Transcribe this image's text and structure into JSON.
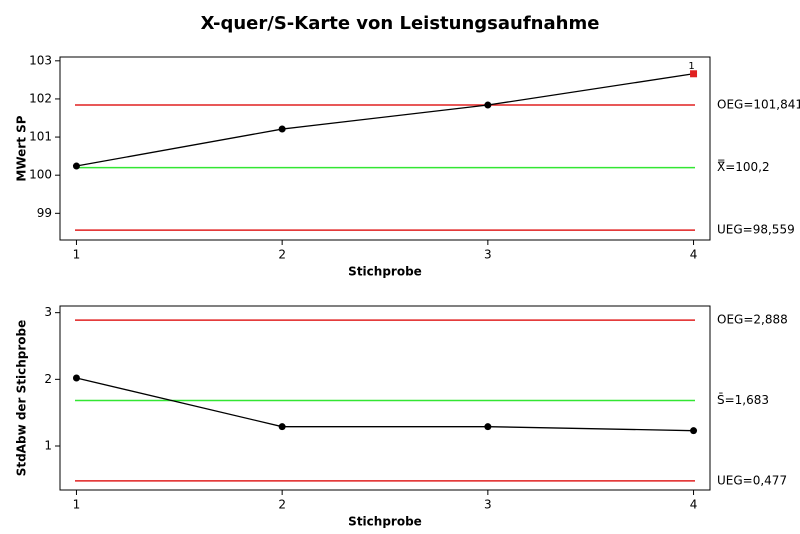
{
  "title": "X-quer/S-Karte von Leistungsaufnahme",
  "chart_data": [
    {
      "type": "line",
      "x_label": "Stichprobe",
      "y_label": "MWert SP",
      "x": [
        1,
        2,
        3,
        4
      ],
      "xlim": [
        0.92,
        4.08
      ],
      "xticks": [
        1,
        2,
        3,
        4
      ],
      "ylim": [
        98.3,
        103.1
      ],
      "yticks": [
        99,
        100,
        101,
        102,
        103
      ],
      "series": [
        {
          "color": "#000000",
          "values": [
            100.24,
            101.21,
            101.84,
            102.66
          ]
        }
      ],
      "point_colors": [
        "#000000",
        "#000000",
        "#000000",
        "#e02020"
      ],
      "point_labels": [
        null,
        null,
        null,
        "1"
      ],
      "control_lines": [
        {
          "label": "OEG=101,841",
          "value": 101.841,
          "color": "#e02020"
        },
        {
          "label": "X̿=100,2",
          "value": 100.2,
          "color": "#33e633"
        },
        {
          "label": "UEG=98,559",
          "value": 98.559,
          "color": "#e02020"
        }
      ]
    },
    {
      "type": "line",
      "x_label": "Stichprobe",
      "y_label": "StdAbw der Stichprobe",
      "x": [
        1,
        2,
        3,
        4
      ],
      "xlim": [
        0.92,
        4.08
      ],
      "xticks": [
        1,
        2,
        3,
        4
      ],
      "ylim": [
        0.34,
        3.1
      ],
      "yticks": [
        1,
        2,
        3
      ],
      "series": [
        {
          "color": "#000000",
          "values": [
            2.02,
            1.29,
            1.29,
            1.23
          ]
        }
      ],
      "point_colors": [
        "#000000",
        "#000000",
        "#000000",
        "#000000"
      ],
      "point_labels": [
        null,
        null,
        null,
        null
      ],
      "control_lines": [
        {
          "label": "OEG=2,888",
          "value": 2.888,
          "color": "#e02020"
        },
        {
          "label": "S̄=1,683",
          "value": 1.683,
          "color": "#33e633"
        },
        {
          "label": "UEG=0,477",
          "value": 0.477,
          "color": "#e02020"
        }
      ]
    }
  ]
}
